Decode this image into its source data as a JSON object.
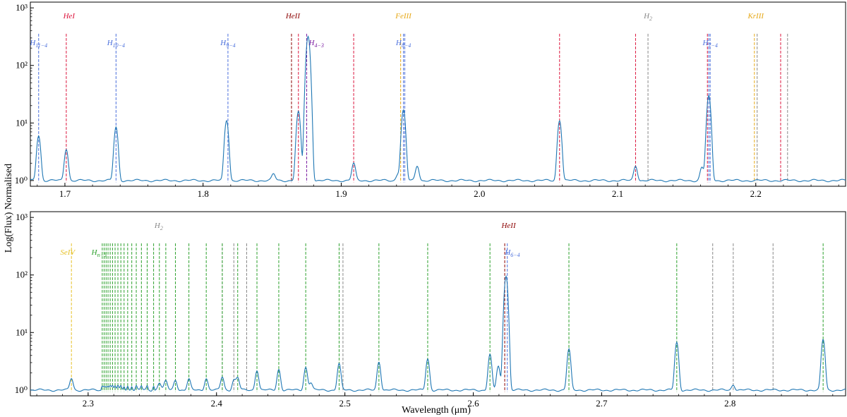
{
  "figure": {
    "ylabel": "Log(Flux) Normalised",
    "xlabel": "Wavelength (μm)",
    "colors": {
      "H": "#4a6fdc",
      "HeI": "#dc143c",
      "HeII": "#8b0000",
      "FeIII": "#e6a817",
      "H2": "#888888",
      "KrIII": "#e6a817",
      "SeIV": "#e6c229",
      "Hn5": "#2ca02c",
      "Paa": "#7b1fa2",
      "spectrum": "#1f77b4"
    }
  },
  "chart_data": [
    {
      "type": "line",
      "panel": "top",
      "xlim": [
        1.675,
        2.265
      ],
      "ylim_log10": [
        -0.1,
        3.1
      ],
      "yscale": "log",
      "xticks": [
        1.7,
        1.8,
        1.9,
        2.0,
        2.1,
        2.2
      ],
      "xtick_labels": [
        "1.7",
        "1.8",
        "1.9",
        "2.0",
        "2.1",
        "2.2"
      ],
      "yticks": [
        0,
        1,
        2,
        3
      ],
      "ytick_labels": [
        "10⁰",
        "10¹",
        "10²",
        "10³"
      ],
      "peaks": [
        {
          "x": 1.681,
          "y": 6
        },
        {
          "x": 1.701,
          "y": 3.5
        },
        {
          "x": 1.737,
          "y": 8.5
        },
        {
          "x": 1.817,
          "y": 11
        },
        {
          "x": 1.869,
          "y": 16
        },
        {
          "x": 1.876,
          "y": 320
        },
        {
          "x": 1.909,
          "y": 2
        },
        {
          "x": 1.945,
          "y": 17
        },
        {
          "x": 1.955,
          "y": 1.8
        },
        {
          "x": 2.058,
          "y": 11
        },
        {
          "x": 2.113,
          "y": 1.8
        },
        {
          "x": 2.161,
          "y": 1.7
        },
        {
          "x": 2.166,
          "y": 30
        },
        {
          "x": 1.851,
          "y": 1.3
        },
        {
          "x": 1.941,
          "y": 1.3
        }
      ],
      "lines": [
        {
          "x": 1.681,
          "group": "H"
        },
        {
          "x": 1.701,
          "group": "HeI"
        },
        {
          "x": 1.737,
          "group": "H"
        },
        {
          "x": 1.818,
          "group": "H"
        },
        {
          "x": 1.864,
          "group": "HeII"
        },
        {
          "x": 1.869,
          "group": "HeI"
        },
        {
          "x": 1.875,
          "group": "Paa"
        },
        {
          "x": 1.909,
          "group": "HeI"
        },
        {
          "x": 1.943,
          "group": "FeIII"
        },
        {
          "x": 1.945,
          "group": "H"
        },
        {
          "x": 1.946,
          "group": "H"
        },
        {
          "x": 2.058,
          "group": "HeI"
        },
        {
          "x": 2.113,
          "group": "HeI"
        },
        {
          "x": 2.122,
          "group": "H2"
        },
        {
          "x": 2.165,
          "group": "HeI"
        },
        {
          "x": 2.166,
          "group": "H"
        },
        {
          "x": 2.167,
          "group": "H"
        },
        {
          "x": 2.199,
          "group": "KrIII"
        },
        {
          "x": 2.201,
          "group": "H2"
        },
        {
          "x": 2.218,
          "group": "HeI"
        },
        {
          "x": 2.223,
          "group": "H2"
        }
      ],
      "labels": [
        {
          "x": 1.681,
          "y_log10": 2.35,
          "text": "H11−4",
          "group": "H"
        },
        {
          "x": 1.703,
          "y_log10": 2.82,
          "text": "HeI",
          "group": "HeI"
        },
        {
          "x": 1.737,
          "y_log10": 2.35,
          "text": "H10−4",
          "group": "H"
        },
        {
          "x": 1.818,
          "y_log10": 2.35,
          "text": "H9−4",
          "group": "H"
        },
        {
          "x": 1.865,
          "y_log10": 2.82,
          "text": "HeII",
          "group": "HeII"
        },
        {
          "x": 1.882,
          "y_log10": 2.35,
          "text": "H4−3",
          "group": "Paa"
        },
        {
          "x": 1.945,
          "y_log10": 2.82,
          "text": "FeIII",
          "group": "FeIII"
        },
        {
          "x": 1.945,
          "y_log10": 2.35,
          "text": "H8−4",
          "group": "H"
        },
        {
          "x": 2.122,
          "y_log10": 2.82,
          "text": "H2",
          "group": "H2"
        },
        {
          "x": 2.167,
          "y_log10": 2.35,
          "text": "H7−4",
          "group": "H"
        },
        {
          "x": 2.2,
          "y_log10": 2.82,
          "text": "KrIII",
          "group": "KrIII"
        }
      ]
    },
    {
      "type": "line",
      "panel": "bottom",
      "xlim": [
        2.255,
        2.89
      ],
      "ylim_log10": [
        -0.1,
        3.1
      ],
      "yscale": "log",
      "xticks": [
        2.3,
        2.4,
        2.5,
        2.6,
        2.7,
        2.8
      ],
      "xtick_labels": [
        "2.3",
        "2.4",
        "2.5",
        "2.6",
        "2.7",
        "2.8"
      ],
      "yticks": [
        0,
        1,
        2,
        3
      ],
      "ytick_labels": [
        "10⁰",
        "10¹",
        "10²",
        "10³"
      ],
      "peaks": [
        {
          "x": 2.287,
          "y": 1.6
        },
        {
          "x": 2.3555,
          "y": 1.35
        },
        {
          "x": 2.3605,
          "y": 1.45
        },
        {
          "x": 2.368,
          "y": 1.5
        },
        {
          "x": 2.3785,
          "y": 1.55
        },
        {
          "x": 2.392,
          "y": 1.6
        },
        {
          "x": 2.4045,
          "y": 1.7
        },
        {
          "x": 2.4135,
          "y": 1.5
        },
        {
          "x": 2.4165,
          "y": 1.65
        },
        {
          "x": 2.4315,
          "y": 2.2
        },
        {
          "x": 2.4485,
          "y": 2.3
        },
        {
          "x": 2.4695,
          "y": 2.5
        },
        {
          "x": 2.4735,
          "y": 1.35
        },
        {
          "x": 2.4955,
          "y": 2.9
        },
        {
          "x": 2.5265,
          "y": 3.1
        },
        {
          "x": 2.5645,
          "y": 3.5
        },
        {
          "x": 2.613,
          "y": 4.2
        },
        {
          "x": 2.6195,
          "y": 2.6
        },
        {
          "x": 2.6255,
          "y": 95
        },
        {
          "x": 2.6745,
          "y": 5.2
        },
        {
          "x": 2.7585,
          "y": 6.8
        },
        {
          "x": 2.8025,
          "y": 1.25
        },
        {
          "x": 2.8725,
          "y": 7.6
        }
      ],
      "lines": [
        {
          "x": 2.287,
          "group": "SeIV"
        },
        {
          "x": 2.4045,
          "group": "H2"
        },
        {
          "x": 2.4135,
          "group": "H2"
        },
        {
          "x": 2.4235,
          "group": "H2"
        },
        {
          "x": 2.6245,
          "group": "HeII"
        },
        {
          "x": 2.6265,
          "group": "H"
        },
        {
          "x": 2.4985,
          "group": "H2"
        },
        {
          "x": 2.7865,
          "group": "H2"
        },
        {
          "x": 2.8025,
          "group": "H2"
        },
        {
          "x": 2.8335,
          "group": "H2"
        }
      ],
      "h_series_x": [
        2.311,
        2.3125,
        2.314,
        2.3155,
        2.3172,
        2.319,
        2.321,
        2.3232,
        2.3255,
        2.328,
        2.3308,
        2.334,
        2.3375,
        2.3415,
        2.346,
        2.351,
        2.3555,
        2.3605,
        2.368,
        2.3785,
        2.392,
        2.4045,
        2.4165,
        2.4315,
        2.4485,
        2.4695,
        2.4955,
        2.5265,
        2.5645,
        2.613,
        2.6745,
        2.7585,
        2.8725
      ],
      "labels": [
        {
          "x": 2.284,
          "y_log10": 2.35,
          "text": "SeIV",
          "group": "SeIV"
        },
        {
          "x": 2.3085,
          "y_log10": 2.35,
          "text": "Hn−5",
          "group": "Hn5"
        },
        {
          "x": 2.355,
          "y_log10": 2.82,
          "text": "H2",
          "group": "H2"
        },
        {
          "x": 2.6275,
          "y_log10": 2.82,
          "text": "HeII",
          "group": "HeII"
        },
        {
          "x": 2.6305,
          "y_log10": 2.35,
          "text": "H6−4",
          "group": "H"
        }
      ]
    }
  ]
}
